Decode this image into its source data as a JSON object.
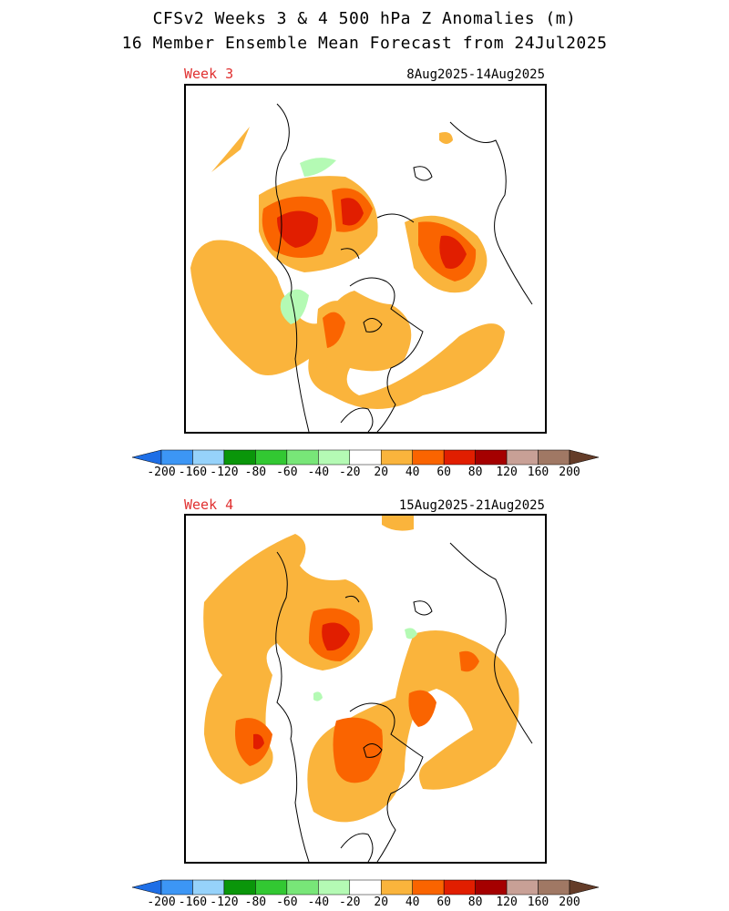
{
  "title_line1": "CFSv2 Weeks 3 & 4 500 hPa Z Anomalies (m)",
  "title_line2": "16 Member Ensemble Mean Forecast from 24Jul2025",
  "panels": [
    {
      "label": "Week 3",
      "dates": "8Aug2025-14Aug2025"
    },
    {
      "label": "Week 4",
      "dates": "15Aug2025-21Aug2025"
    }
  ],
  "colorbar": {
    "colors": [
      "#1e6ee6",
      "#3c96f5",
      "#96d2fa",
      "#0a960a",
      "#32c832",
      "#78e678",
      "#b4fab4",
      "#ffffff",
      "#fab43c",
      "#fa6400",
      "#e11e00",
      "#a50000",
      "#c8a096",
      "#a07864",
      "#643c28"
    ],
    "labels": [
      "-200",
      "-160",
      "-120",
      "-80",
      "-60",
      "-40",
      "-20",
      "20",
      "40",
      "60",
      "80",
      "120",
      "160",
      "200"
    ]
  },
  "legend_colors": {
    "pos20": "#fab43c",
    "pos40": "#fa6400",
    "pos60": "#e11e00",
    "neg20": "#b4fab4"
  }
}
